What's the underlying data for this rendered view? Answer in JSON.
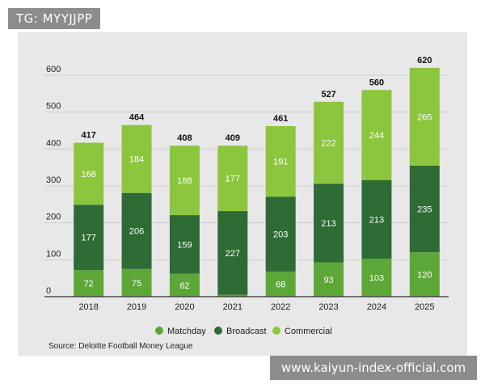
{
  "watermark_top": "TG: MYYJJPP",
  "watermark_bottom": "www.kaiyun-index-official.com",
  "source": "Source: Deloitte Football Money League",
  "colors": {
    "matchday": "#5ca738",
    "broadcast": "#2e6b35",
    "commercial": "#8cc63f",
    "grid": "#cfcfcf",
    "axis": "#333333"
  },
  "chart_data": {
    "type": "bar",
    "stacked": true,
    "title": "",
    "xlabel": "",
    "ylabel": "",
    "ylim": [
      0,
      600
    ],
    "yticks": [
      0,
      100,
      200,
      300,
      400,
      500,
      600
    ],
    "categories": [
      "2018",
      "2019",
      "2020",
      "2021",
      "2022",
      "2023",
      "2024",
      "2025"
    ],
    "series": [
      {
        "name": "Matchday",
        "color_key": "matchday",
        "values": [
          72,
          75,
          62,
          5,
          68,
          93,
          103,
          120
        ],
        "labels": [
          "72",
          "75",
          "62",
          "",
          "68",
          "93",
          "103",
          "120"
        ]
      },
      {
        "name": "Broadcast",
        "color_key": "broadcast",
        "values": [
          177,
          206,
          159,
          227,
          203,
          213,
          213,
          235
        ],
        "labels": [
          "177",
          "206",
          "159",
          "227",
          "203",
          "213",
          "213",
          "235"
        ]
      },
      {
        "name": "Commercial",
        "color_key": "commercial",
        "values": [
          168,
          184,
          188,
          177,
          191,
          222,
          244,
          265
        ],
        "labels": [
          "168",
          "184",
          "188",
          "177",
          "191",
          "222",
          "244",
          "265"
        ]
      }
    ],
    "totals": [
      "417",
      "464",
      "408",
      "409",
      "461",
      "527",
      "560",
      "620"
    ],
    "legend": [
      "Matchday",
      "Broadcast",
      "Commercial"
    ],
    "legend_position": "bottom-center",
    "grid": true
  }
}
